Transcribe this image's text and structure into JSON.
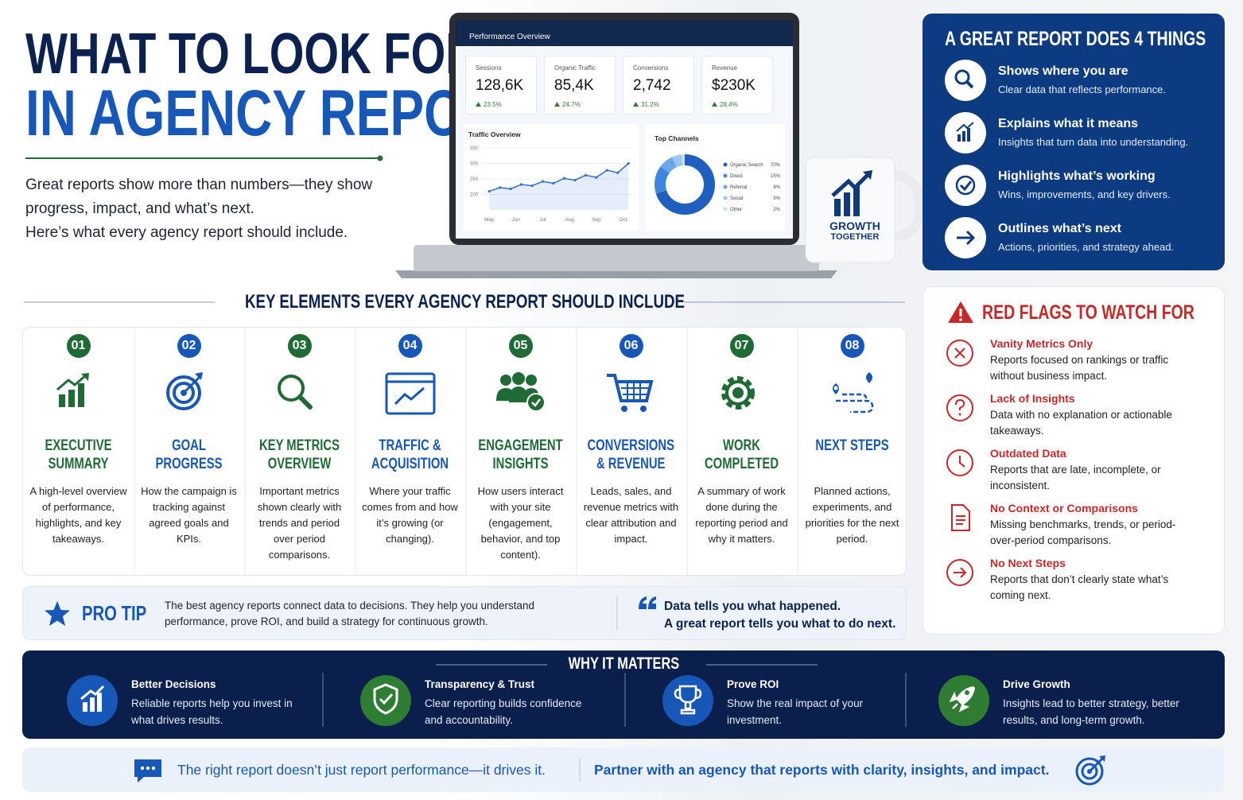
{
  "header": {
    "title_line1": "WHAT TO LOOK FOR",
    "title_line2": "IN AGENCY REPORTS",
    "intro": [
      "Great reports show more than numbers—they show progress, impact, and what’s next.",
      "Here’s what every agency report should include."
    ]
  },
  "dashboard": {
    "title": "Performance Overview",
    "kpis": [
      {
        "label": "Sessions",
        "value": "128,6K",
        "change": "23.5%"
      },
      {
        "label": "Organic Traffic",
        "value": "85,4K",
        "change": "24.7%"
      },
      {
        "label": "Conversions",
        "value": "2,742",
        "change": "31.2%"
      },
      {
        "label": "Revenue",
        "value": "$230K",
        "change": "28.4%"
      }
    ],
    "traffic": {
      "type": "line",
      "title": "Traffic Overview",
      "x": [
        0,
        0.4,
        0.8,
        1.2,
        1.6,
        2,
        2.4,
        2.8,
        3.2,
        3.6,
        4,
        4.4,
        4.8,
        5.2
      ],
      "values": [
        210,
        222,
        218,
        232,
        228,
        242,
        236,
        252,
        246,
        262,
        255,
        278,
        270,
        300
      ],
      "xlim": [
        -0.3,
        5.4
      ],
      "xticks": [
        {
          "value": 0,
          "label": "May"
        },
        {
          "value": 1,
          "label": "Jun"
        },
        {
          "value": 2,
          "label": "Jul"
        },
        {
          "value": 3,
          "label": "Aug"
        },
        {
          "value": 4,
          "label": "Sep"
        },
        {
          "value": 5,
          "label": "Oct"
        }
      ],
      "ylim": [
        150,
        350
      ],
      "yticks": [
        200,
        250,
        300,
        350
      ],
      "color": "#2f6fd6"
    },
    "channels": {
      "type": "donut",
      "title": "Top Channels",
      "categories": [
        "Organic Search",
        "Direct",
        "Referral",
        "Social",
        "Other"
      ],
      "values": [
        70,
        15,
        8,
        5,
        2
      ],
      "value_labels": [
        "70%",
        "15%",
        "8%",
        "5%",
        "2%"
      ],
      "colors": [
        "#1f5fbf",
        "#3f86e0",
        "#6aa8ee",
        "#9cc6f5",
        "#c9def8"
      ]
    }
  },
  "mug": {
    "line1": "GROWTH",
    "line2": "TOGETHER"
  },
  "great_report": {
    "title": "A GREAT REPORT DOES 4 THINGS",
    "items": [
      {
        "title": "Shows where you are",
        "text": "Clear data that reflects performance."
      },
      {
        "title": "Explains what it means",
        "text": "Insights that turn data into understanding."
      },
      {
        "title": "Highlights what’s working",
        "text": "Wins, improvements, and key drivers."
      },
      {
        "title": "Outlines what’s next",
        "text": "Actions, priorities, and strategy ahead."
      }
    ]
  },
  "red_flags": {
    "title": "RED FLAGS TO WATCH FOR",
    "items": [
      {
        "title": "Vanity Metrics Only",
        "text": "Reports focused on rankings or traffic without business impact."
      },
      {
        "title": "Lack of Insights",
        "text": "Data with no explanation or actionable takeaways."
      },
      {
        "title": "Outdated Data",
        "text": "Reports that are late, incomplete, or inconsistent."
      },
      {
        "title": "No Context or Comparisons",
        "text": "Missing benchmarks, trends, or period-over-period comparisons."
      },
      {
        "title": "No Next Steps",
        "text": "Reports that don’t clearly state what’s coming next."
      }
    ]
  },
  "key_elements": {
    "title": "KEY ELEMENTS EVERY AGENCY REPORT SHOULD INCLUDE",
    "items": [
      {
        "number": "01",
        "title": "EXECUTIVE SUMMARY",
        "text": "A high-level overview of performance, highlights, and key takeaways."
      },
      {
        "number": "02",
        "title": "GOAL PROGRESS",
        "text": "How the campaign is tracking against agreed goals and KPIs."
      },
      {
        "number": "03",
        "title": "KEY METRICS OVERVIEW",
        "text": "Important metrics shown clearly with trends and period over period comparisons."
      },
      {
        "number": "04",
        "title": "TRAFFIC & ACQUISITION",
        "text": "Where your traffic comes from and how it’s growing (or changing)."
      },
      {
        "number": "05",
        "title": "ENGAGEMENT INSIGHTS",
        "text": "How users interact with your site (engagement, behavior, and top content)."
      },
      {
        "number": "06",
        "title": "CONVERSIONS & REVENUE",
        "text": "Leads, sales, and revenue metrics with clear attribution and impact."
      },
      {
        "number": "07",
        "title": "WORK COMPLETED",
        "text": "A summary of work done during the reporting period and why it matters."
      },
      {
        "number": "08",
        "title": "NEXT STEPS",
        "text": "Planned actions, experiments, and priorities for the next period."
      }
    ]
  },
  "pro_tip": {
    "label": "PRO TIP",
    "text": "The best agency reports connect data to decisions. They help you understand performance, prove ROI, and build a strategy for continuous growth.",
    "quote_line1": "Data tells you what happened.",
    "quote_line2": "A great report tells you what to do next."
  },
  "why_it_matters": {
    "title": "WHY IT MATTERS",
    "items": [
      {
        "title": "Better Decisions",
        "text": "Reliable reports help you invest in what drives results."
      },
      {
        "title": "Transparency & Trust",
        "text": "Clear reporting builds confidence and accountability."
      },
      {
        "title": "Prove ROI",
        "text": "Show the real impact of your investment."
      },
      {
        "title": "Drive Growth",
        "text": "Insights lead to better strategy, better results, and long-term growth."
      }
    ]
  },
  "footer": {
    "left": "The right report doesn’t just report performance—it drives it.",
    "right": "Partner with an agency that reports with clarity, insights, and impact."
  }
}
